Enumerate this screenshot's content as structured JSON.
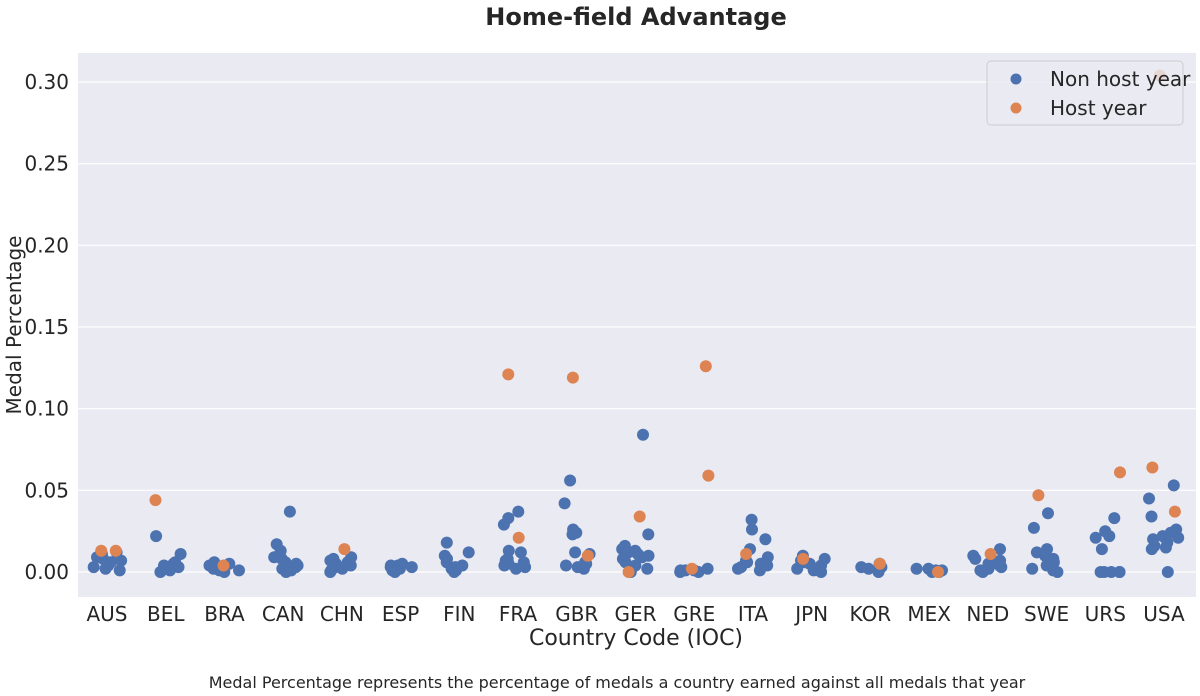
{
  "chart_data": {
    "type": "scatter",
    "title": "Home-field Advantage",
    "xlabel": "Country Code (IOC)",
    "ylabel": "Medal Percentage",
    "caption": "Medal Percentage represents the percentage of medals a country earned against all medals that year",
    "categories": [
      "AUS",
      "BEL",
      "BRA",
      "CAN",
      "CHN",
      "ESP",
      "FIN",
      "FRA",
      "GBR",
      "GER",
      "GRE",
      "ITA",
      "JPN",
      "KOR",
      "MEX",
      "NED",
      "SWE",
      "URS",
      "USA"
    ],
    "yticks": [
      "0.00",
      "0.05",
      "0.10",
      "0.15",
      "0.20",
      "0.25",
      "0.30"
    ],
    "ylim": [
      -0.015,
      0.32
    ],
    "grid": true,
    "legend_position": "top-right",
    "colors": {
      "Non host year": "#4c72b0",
      "Host year": "#dd8452",
      "background": "#eaeaf2"
    },
    "series": [
      {
        "name": "Non host year",
        "color": "#4c72b0",
        "points": [
          {
            "cat": "AUS",
            "values": [
              0.001,
              0.003,
              0.005,
              0.008,
              0.002,
              0.006,
              0.009,
              0.011,
              0.004,
              0.007,
              0.012
            ]
          },
          {
            "cat": "BEL",
            "values": [
              0.022,
              0.011,
              0.006,
              0.004,
              0.003,
              0.002,
              0.001,
              0.0,
              0.005,
              0.002
            ]
          },
          {
            "cat": "BRA",
            "values": [
              0.005,
              0.003,
              0.002,
              0.001,
              0.0,
              0.004,
              0.006,
              0.002,
              0.001
            ]
          },
          {
            "cat": "CAN",
            "values": [
              0.037,
              0.017,
              0.013,
              0.009,
              0.006,
              0.004,
              0.003,
              0.002,
              0.001,
              0.0,
              0.005,
              0.008
            ]
          },
          {
            "cat": "CHN",
            "values": [
              0.008,
              0.006,
              0.004,
              0.003,
              0.002,
              0.001,
              0.0,
              0.005,
              0.007,
              0.009
            ]
          },
          {
            "cat": "ESP",
            "values": [
              0.005,
              0.004,
              0.003,
              0.002,
              0.001,
              0.0,
              0.004,
              0.003
            ]
          },
          {
            "cat": "FIN",
            "values": [
              0.018,
              0.012,
              0.01,
              0.008,
              0.006,
              0.004,
              0.002,
              0.001,
              0.0,
              0.003
            ]
          },
          {
            "cat": "FRA",
            "values": [
              0.037,
              0.033,
              0.029,
              0.013,
              0.012,
              0.008,
              0.006,
              0.005,
              0.004,
              0.003,
              0.002,
              0.007
            ]
          },
          {
            "cat": "GBR",
            "values": [
              0.056,
              0.042,
              0.026,
              0.024,
              0.023,
              0.012,
              0.011,
              0.005,
              0.004,
              0.003,
              0.002,
              0.006
            ]
          },
          {
            "cat": "GER",
            "values": [
              0.084,
              0.023,
              0.016,
              0.014,
              0.013,
              0.012,
              0.01,
              0.008,
              0.006,
              0.004,
              0.002,
              0.0,
              0.011,
              0.009
            ]
          },
          {
            "cat": "GRE",
            "values": [
              0.002,
              0.001,
              0.0,
              0.001,
              0.0,
              0.001
            ]
          },
          {
            "cat": "ITA",
            "values": [
              0.032,
              0.026,
              0.02,
              0.014,
              0.009,
              0.007,
              0.005,
              0.004,
              0.003,
              0.002,
              0.001,
              0.006
            ]
          },
          {
            "cat": "JPN",
            "values": [
              0.01,
              0.008,
              0.006,
              0.005,
              0.004,
              0.003,
              0.002,
              0.001,
              0.0,
              0.007
            ]
          },
          {
            "cat": "KOR",
            "values": [
              0.005,
              0.004,
              0.003,
              0.002,
              0.001,
              0.0,
              0.003
            ]
          },
          {
            "cat": "MEX",
            "values": [
              0.002,
              0.001,
              0.0,
              0.001,
              0.0,
              0.002
            ]
          },
          {
            "cat": "NED",
            "values": [
              0.014,
              0.01,
              0.008,
              0.006,
              0.005,
              0.004,
              0.003,
              0.002,
              0.001,
              0.0,
              0.007
            ]
          },
          {
            "cat": "SWE",
            "values": [
              0.036,
              0.027,
              0.014,
              0.012,
              0.01,
              0.008,
              0.006,
              0.004,
              0.003,
              0.002,
              0.001,
              0.0
            ]
          },
          {
            "cat": "URS",
            "values": [
              0.033,
              0.025,
              0.022,
              0.021,
              0.014,
              0.0,
              0.0,
              0.0,
              0.0,
              0.0
            ]
          },
          {
            "cat": "USA",
            "values": [
              0.053,
              0.045,
              0.034,
              0.026,
              0.024,
              0.022,
              0.02,
              0.018,
              0.016,
              0.015,
              0.014,
              0.021,
              0.0
            ]
          }
        ]
      },
      {
        "name": "Host year",
        "color": "#dd8452",
        "points": [
          {
            "cat": "AUS",
            "values": [
              0.013,
              0.013
            ]
          },
          {
            "cat": "BEL",
            "values": [
              0.044
            ]
          },
          {
            "cat": "BRA",
            "values": [
              0.004
            ]
          },
          {
            "cat": "CAN",
            "values": []
          },
          {
            "cat": "CHN",
            "values": [
              0.014
            ]
          },
          {
            "cat": "FRA",
            "values": [
              0.121,
              0.021
            ]
          },
          {
            "cat": "GBR",
            "values": [
              0.119,
              0.01
            ]
          },
          {
            "cat": "GER",
            "values": [
              0.034,
              0.0
            ]
          },
          {
            "cat": "GRE",
            "values": [
              0.126,
              0.059,
              0.002
            ]
          },
          {
            "cat": "ITA",
            "values": [
              0.011
            ]
          },
          {
            "cat": "JPN",
            "values": [
              0.008
            ]
          },
          {
            "cat": "KOR",
            "values": [
              0.005
            ]
          },
          {
            "cat": "MEX",
            "values": [
              0.0
            ]
          },
          {
            "cat": "NED",
            "values": [
              0.011
            ]
          },
          {
            "cat": "SWE",
            "values": [
              0.047
            ]
          },
          {
            "cat": "URS",
            "values": [
              0.061
            ]
          },
          {
            "cat": "USA",
            "values": [
              0.064,
              0.037,
              0.304
            ]
          }
        ]
      }
    ]
  }
}
